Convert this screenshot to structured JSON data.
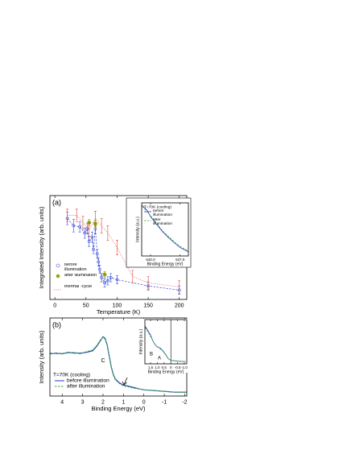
{
  "chart_data": [
    {
      "type": "scatter",
      "label": "(a)",
      "xlabel": "Temperature (K)",
      "ylabel": "Integrated Intensity (arb. units)",
      "xlim": [
        -8,
        212
      ],
      "xticks": [
        0,
        50,
        100,
        150,
        200
      ],
      "ylim": [
        0,
        1
      ],
      "series": [
        {
          "name": "before illumination",
          "color": "#3b4fd8",
          "marker": "open-circle",
          "line_style": "dashed",
          "x": [
            20,
            30,
            40,
            48,
            52,
            55,
            60,
            62,
            65,
            68,
            70,
            72,
            75,
            80,
            85,
            90,
            100,
            150,
            200
          ],
          "values": [
            0.78,
            0.71,
            0.7,
            0.64,
            0.68,
            0.56,
            0.6,
            0.48,
            0.68,
            0.44,
            0.36,
            0.29,
            0.21,
            0.16,
            0.18,
            0.21,
            0.19,
            0.13,
            0.09
          ],
          "error": [
            0.06,
            0.06,
            0.05,
            0.05,
            0.05,
            0.05,
            0.05,
            0.04,
            0.05,
            0.04,
            0.04,
            0.04,
            0.04,
            0.04,
            0.04,
            0.04,
            0.04,
            0.04,
            0.04
          ]
        },
        {
          "name": "after illumination",
          "color": "#7aa51a",
          "marker": "filled-circle",
          "line_style": "none",
          "x": [
            55,
            65,
            80
          ],
          "values": [
            0.74,
            0.73,
            0.24
          ],
          "error": [
            0.03,
            0.03,
            0.03
          ]
        },
        {
          "name": "thermal -cycle",
          "color": "#e0443a",
          "marker": "none",
          "line_style": "dotted",
          "x": [
            20,
            35,
            45,
            55,
            65,
            75,
            85,
            100,
            125,
            150,
            200
          ],
          "values": [
            0.81,
            0.81,
            0.74,
            0.67,
            0.78,
            0.71,
            0.64,
            0.5,
            0.22,
            0.16,
            0.12
          ],
          "error": [
            0.06,
            0.06,
            0.06,
            0.06,
            0.07,
            0.07,
            0.07,
            0.07,
            0.06,
            0.06,
            0.06
          ]
        }
      ]
    },
    {
      "type": "line",
      "xlabel": "Binding Energy (eV)",
      "ylabel": "Intensity (a.u.)",
      "legend_title": "T=70K (cooling)",
      "xlim": [
        640.75,
        636.8
      ],
      "xticks": [
        {
          "value": 640,
          "label": "640.0"
        },
        637.5
      ],
      "ylim": [
        0,
        1
      ],
      "series": [
        {
          "name": "before illumination",
          "color": "#2a36c8",
          "line_style": "solid",
          "x": [
            640.7,
            640.3,
            640,
            639.5,
            639,
            638.5,
            638,
            637.5,
            637,
            636.8
          ],
          "values": [
            0.95,
            0.86,
            0.74,
            0.6,
            0.46,
            0.35,
            0.25,
            0.16,
            0.1,
            0.08
          ]
        },
        {
          "name": "after illumination",
          "color": "#35b035",
          "line_style": "dashed",
          "x": [
            640.7,
            640.3,
            640,
            639.5,
            639,
            638.5,
            638,
            637.5,
            637,
            636.8
          ],
          "values": [
            0.93,
            0.84,
            0.76,
            0.62,
            0.48,
            0.37,
            0.27,
            0.18,
            0.12,
            0.09
          ]
        }
      ]
    },
    {
      "type": "line",
      "label": "(b)",
      "xlabel": "Binding Energy (eV)",
      "ylabel": "Intensity (arb. units)",
      "legend_title": "T=70K (cooling)",
      "annotations": [
        "C"
      ],
      "xlim": [
        4.6,
        -2.1
      ],
      "xticks": [
        4,
        3,
        2,
        1,
        0,
        -1,
        -2
      ],
      "ylim": [
        0,
        1
      ],
      "series": [
        {
          "name": "before illumination",
          "color": "#2a36c8",
          "line_style": "solid",
          "x": [
            4.6,
            4.3,
            4.0,
            3.7,
            3.4,
            3.1,
            2.8,
            2.5,
            2.3,
            2.1,
            2.0,
            1.9,
            1.8,
            1.7,
            1.6,
            1.5,
            1.4,
            1.2,
            1.0,
            0.8,
            0.5,
            0.2,
            0,
            -0.5,
            -1,
            -1.5,
            -2.1
          ],
          "values": [
            0.54,
            0.55,
            0.54,
            0.56,
            0.55,
            0.55,
            0.56,
            0.58,
            0.64,
            0.72,
            0.76,
            0.74,
            0.66,
            0.52,
            0.38,
            0.28,
            0.22,
            0.17,
            0.14,
            0.13,
            0.11,
            0.09,
            0.08,
            0.07,
            0.06,
            0.05,
            0.05
          ]
        },
        {
          "name": "after illumination",
          "color": "#35b035",
          "line_style": "dashed",
          "x": [
            4.6,
            4.3,
            4.0,
            3.7,
            3.4,
            3.1,
            2.8,
            2.5,
            2.3,
            2.1,
            2.0,
            1.9,
            1.8,
            1.7,
            1.6,
            1.5,
            1.4,
            1.2,
            1.0,
            0.8,
            0.5,
            0.2,
            0,
            -0.5,
            -1,
            -1.5,
            -2.1
          ],
          "values": [
            0.55,
            0.54,
            0.55,
            0.55,
            0.56,
            0.54,
            0.57,
            0.59,
            0.65,
            0.73,
            0.75,
            0.73,
            0.65,
            0.51,
            0.37,
            0.27,
            0.21,
            0.16,
            0.13,
            0.12,
            0.1,
            0.09,
            0.08,
            0.07,
            0.06,
            0.05,
            0.05
          ]
        }
      ]
    },
    {
      "type": "line",
      "xlabel": "Binding Energy (eV)",
      "ylabel": "Intensity (a.u.)",
      "annotations": [
        "A",
        "B"
      ],
      "xlim": [
        1.92,
        -1.18
      ],
      "xticks": [
        1.5,
        {
          "value": 1,
          "label": "1.0"
        },
        0.5,
        0,
        -0.5,
        {
          "value": -1,
          "label": "-1.0"
        }
      ],
      "ylim": [
        0,
        1
      ],
      "series": [
        {
          "name": "before illumination",
          "color": "#2a36c8",
          "line_style": "solid",
          "x": [
            1.9,
            1.7,
            1.5,
            1.3,
            1.2,
            1.0,
            0.8,
            0.6,
            0.4,
            0.2,
            0,
            -0.5,
            -1.1
          ],
          "values": [
            0.85,
            0.75,
            0.65,
            0.5,
            0.45,
            0.38,
            0.36,
            0.3,
            0.22,
            0.12,
            0.08,
            0.06,
            0.05
          ]
        },
        {
          "name": "after illumination",
          "color": "#35b035",
          "line_style": "dashed",
          "x": [
            1.9,
            1.7,
            1.5,
            1.3,
            1.2,
            1.0,
            0.8,
            0.6,
            0.4,
            0.2,
            0,
            -0.5,
            -1.1
          ],
          "values": [
            0.82,
            0.72,
            0.62,
            0.5,
            0.44,
            0.39,
            0.34,
            0.29,
            0.21,
            0.12,
            0.08,
            0.06,
            0.05
          ]
        }
      ]
    }
  ]
}
